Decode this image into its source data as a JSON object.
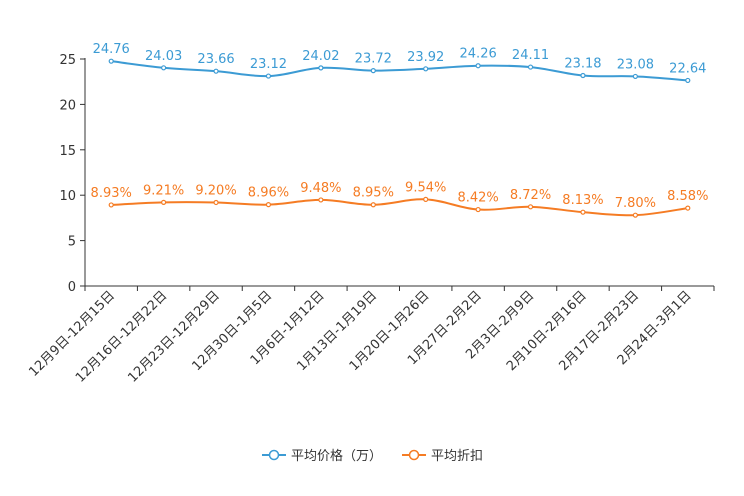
{
  "chart_data": {
    "type": "line",
    "title": "",
    "xlabel": "",
    "ylabel": "",
    "ylim": [
      0,
      25
    ],
    "yticks": [
      0,
      5,
      10,
      15,
      20,
      25
    ],
    "grid": false,
    "legend_position": "bottom-center",
    "categories": [
      "12月9日-12月15日",
      "12月16日-12月22日",
      "12月23日-12月29日",
      "12月30日-1月5日",
      "1月6日-1月12日",
      "1月13日-1月19日",
      "1月20日-1月26日",
      "1月27日-2月2日",
      "2月3日-2月9日",
      "2月10日-2月16日",
      "2月17日-2月23日",
      "2月24日-3月1日"
    ],
    "series": [
      {
        "name": "平均价格（万）",
        "color": "#3c9bd4",
        "values": [
          24.76,
          24.03,
          23.66,
          23.12,
          24.02,
          23.72,
          23.92,
          24.26,
          24.11,
          23.18,
          23.08,
          22.64
        ],
        "labels": [
          "24.76",
          "24.03",
          "23.66",
          "23.12",
          "24.02",
          "23.72",
          "23.92",
          "24.26",
          "24.11",
          "23.18",
          "23.08",
          "22.64"
        ]
      },
      {
        "name": "平均折扣",
        "color": "#f57c24",
        "values": [
          8.93,
          9.21,
          9.2,
          8.96,
          9.48,
          8.95,
          9.54,
          8.42,
          8.72,
          8.13,
          7.8,
          8.58
        ],
        "labels": [
          "8.93%",
          "9.21%",
          "9.20%",
          "8.96%",
          "9.48%",
          "8.95%",
          "9.54%",
          "8.42%",
          "8.72%",
          "8.13%",
          "7.80%",
          "8.58%"
        ]
      }
    ]
  }
}
